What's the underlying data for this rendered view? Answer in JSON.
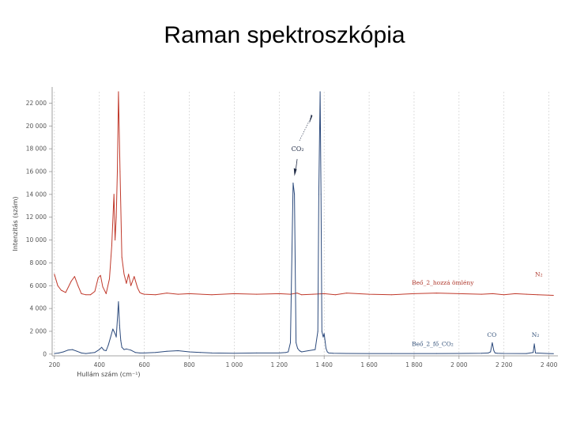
{
  "slide": {
    "title": "Raman spektroszkópia"
  },
  "chart_data": {
    "type": "line",
    "xlabel": "Hullám szám (cm⁻¹)",
    "ylabel": "Intenzitás (szám)",
    "xlim": [
      190,
      2440
    ],
    "ylim": [
      -150,
      23000
    ],
    "xticks": [
      200,
      400,
      600,
      800,
      1000,
      1200,
      1400,
      1600,
      1800,
      2000,
      2200,
      2400
    ],
    "xtick_labels": [
      "200",
      "400",
      "600",
      "800",
      "1 000",
      "1 200",
      "1 400",
      "1 600",
      "1 800",
      "2 000",
      "2 200",
      "2 400"
    ],
    "yticks": [
      0,
      2000,
      4000,
      6000,
      8000,
      10000,
      12000,
      14000,
      16000,
      18000,
      20000,
      22000
    ],
    "ytick_labels": [
      "0",
      "2 000",
      "4 000",
      "6 000",
      "8 000",
      "10 000",
      "12 000",
      "14 000",
      "16 000",
      "18 000",
      "20 000",
      "22 000"
    ],
    "grid": "vertical dashed",
    "colors": {
      "red": "#c0392b",
      "blue": "#2c4a7c",
      "grid": "#c8c8c8"
    },
    "series": [
      {
        "name": "Beő_2_hozzá ömlény",
        "color": "#c0392b",
        "x": [
          200,
          215,
          230,
          250,
          275,
          290,
          305,
          320,
          340,
          360,
          380,
          395,
          405,
          415,
          430,
          445,
          455,
          465,
          470,
          475,
          480,
          485,
          492,
          500,
          510,
          520,
          530,
          540,
          555,
          570,
          580,
          590,
          600,
          650,
          700,
          750,
          800,
          900,
          1000,
          1100,
          1200,
          1250,
          1280,
          1300,
          1350,
          1400,
          1450,
          1500,
          1600,
          1700,
          1800,
          1900,
          2000,
          2100,
          2150,
          2200,
          2250,
          2300,
          2350,
          2420
        ],
        "y": [
          7000,
          6000,
          5600,
          5400,
          6400,
          6800,
          6000,
          5300,
          5200,
          5200,
          5500,
          6700,
          6900,
          5900,
          5300,
          6600,
          9500,
          14000,
          10000,
          12000,
          16000,
          23000,
          16000,
          8500,
          7000,
          6200,
          7000,
          6000,
          6800,
          5800,
          5400,
          5300,
          5250,
          5200,
          5350,
          5250,
          5300,
          5200,
          5300,
          5250,
          5300,
          5250,
          5350,
          5200,
          5250,
          5300,
          5200,
          5350,
          5250,
          5200,
          5300,
          5350,
          5300,
          5250,
          5300,
          5200,
          5300,
          5250,
          5200,
          5150
        ]
      },
      {
        "name": "Beő_2_fő_CO₂",
        "color": "#2c4a7c",
        "x": [
          200,
          220,
          240,
          260,
          280,
          300,
          320,
          340,
          360,
          380,
          400,
          410,
          420,
          430,
          440,
          450,
          460,
          470,
          475,
          480,
          485,
          490,
          495,
          500,
          510,
          520,
          540,
          560,
          580,
          600,
          650,
          700,
          750,
          800,
          850,
          900,
          1000,
          1100,
          1200,
          1230,
          1240,
          1250,
          1262,
          1268,
          1275,
          1282,
          1290,
          1300,
          1330,
          1360,
          1372,
          1376,
          1382,
          1386,
          1390,
          1396,
          1400,
          1408,
          1414,
          1420,
          1440,
          1500,
          1600,
          1700,
          1800,
          1900,
          2000,
          2100,
          2130,
          2140,
          2148,
          2155,
          2160,
          2170,
          2200,
          2300,
          2330,
          2335,
          2340,
          2400,
          2420
        ],
        "y": [
          50,
          100,
          200,
          350,
          400,
          250,
          100,
          50,
          100,
          150,
          400,
          600,
          350,
          300,
          800,
          1500,
          2200,
          1800,
          1500,
          3000,
          4600,
          2500,
          1200,
          600,
          400,
          450,
          350,
          150,
          100,
          100,
          150,
          250,
          300,
          200,
          150,
          100,
          80,
          100,
          100,
          150,
          200,
          1000,
          15000,
          14000,
          1000,
          500,
          300,
          200,
          300,
          400,
          2000,
          14000,
          23000,
          14000,
          2000,
          1500,
          1800,
          500,
          200,
          100,
          80,
          60,
          50,
          50,
          50,
          50,
          60,
          80,
          100,
          200,
          1000,
          300,
          100,
          80,
          60,
          50,
          150,
          900,
          100,
          50,
          40
        ]
      }
    ],
    "annotations": [
      {
        "text": "CO₂",
        "x": 1282,
        "y": 17800
      },
      {
        "text": "N₂",
        "x": 2355,
        "y": 6800
      },
      {
        "text": "CO",
        "x": 2146,
        "y": 1500
      },
      {
        "text": "N₂",
        "x": 2340,
        "y": 1500
      }
    ],
    "legend": [
      {
        "text": "Beő_2_hozzá ömlény",
        "position": "right, above red trace"
      },
      {
        "text": "Beő_2_fő_CO₂",
        "position": "right, above blue trace"
      }
    ]
  }
}
